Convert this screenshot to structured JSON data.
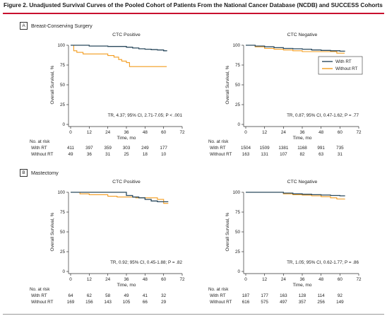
{
  "figure_title": "Figure 2. Unadjusted Survival Curves of the Pooled Cohort of Patients From the National Cancer Database (NCDB) and SUCCESS Cohorts",
  "panels": [
    {
      "letter": "A",
      "title": "Breast-Conserving Surgery"
    },
    {
      "letter": "B",
      "title": "Mastectomy"
    }
  ],
  "colors": {
    "with_rt": "#2b4a5e",
    "without_rt": "#f39c1f",
    "accent_rule": "#c8102e"
  },
  "legend": {
    "with_rt": "With RT",
    "without_rt": "Without RT"
  },
  "risk_labels": {
    "header": "No. at risk",
    "with_rt": "With RT",
    "without_rt": "Without RT"
  },
  "chart_data": [
    {
      "type": "line",
      "panel": "A",
      "title": "CTC Positive",
      "xlabel": "Time, mo",
      "ylabel": "Overall Survival, %",
      "xlim": [
        0,
        72
      ],
      "ylim": [
        0,
        100
      ],
      "xticks": [
        0,
        12,
        24,
        36,
        48,
        60,
        72
      ],
      "yticks": [
        0,
        25,
        50,
        75,
        100
      ],
      "annotation": "TR, 4.37; 95% CI, 2.71-7.05; P < .001",
      "legend": false,
      "series": [
        {
          "name": "With RT",
          "color": "#2b4a5e",
          "x": [
            0,
            12,
            24,
            36,
            40,
            44,
            48,
            52,
            56,
            60,
            62
          ],
          "y": [
            100,
            99,
            98.5,
            97.5,
            96.5,
            95.5,
            95,
            94.5,
            94,
            93,
            92.5
          ]
        },
        {
          "name": "Without RT",
          "color": "#f39c1f",
          "x": [
            0,
            2,
            4,
            8,
            18,
            24,
            28,
            31,
            33,
            36,
            38,
            50,
            62
          ],
          "y": [
            100,
            93,
            91,
            89,
            89,
            87,
            85,
            82,
            80,
            78,
            73,
            73,
            73
          ]
        }
      ],
      "risk_times": [
        0,
        12,
        24,
        36,
        48,
        60
      ],
      "risk": {
        "with_rt": [
          411,
          397,
          359,
          303,
          249,
          177
        ],
        "without_rt": [
          49,
          36,
          31,
          25,
          18,
          10
        ]
      }
    },
    {
      "type": "line",
      "panel": "A",
      "title": "CTC Negative",
      "xlabel": "Time, mo",
      "ylabel": "Overall Survival, %",
      "xlim": [
        0,
        72
      ],
      "ylim": [
        0,
        100
      ],
      "xticks": [
        0,
        12,
        24,
        36,
        48,
        60,
        72
      ],
      "yticks": [
        0,
        25,
        50,
        75,
        100
      ],
      "annotation": "TR, 0.87; 95% CI, 0.47-1.62; P = .77",
      "legend": true,
      "legend_position": "right",
      "series": [
        {
          "name": "With RT",
          "color": "#2b4a5e",
          "x": [
            0,
            6,
            12,
            18,
            24,
            30,
            36,
            42,
            48,
            54,
            60,
            63
          ],
          "y": [
            100,
            99,
            98,
            97,
            96,
            95.5,
            95,
            94,
            93.5,
            93,
            92.5,
            92
          ]
        },
        {
          "name": "Without RT",
          "color": "#f39c1f",
          "x": [
            0,
            6,
            12,
            18,
            24,
            30,
            36,
            42,
            48,
            54,
            58,
            63
          ],
          "y": [
            100,
            98,
            96,
            95,
            94,
            93,
            92,
            92,
            92,
            92,
            90,
            90
          ]
        }
      ],
      "risk_times": [
        0,
        12,
        24,
        36,
        48,
        60
      ],
      "risk": {
        "with_rt": [
          1504,
          1509,
          1381,
          1168,
          991,
          735
        ],
        "without_rt": [
          163,
          131,
          107,
          82,
          63,
          31
        ]
      }
    },
    {
      "type": "line",
      "panel": "B",
      "title": "CTC Positive",
      "xlabel": "Time, mo",
      "ylabel": "Overall Survival, %",
      "xlim": [
        0,
        72
      ],
      "ylim": [
        0,
        100
      ],
      "xticks": [
        0,
        12,
        24,
        36,
        48,
        60,
        72
      ],
      "yticks": [
        0,
        25,
        50,
        75,
        100
      ],
      "annotation": "TR, 0.92; 95% CI, 0.45-1.88; P = .82",
      "legend": false,
      "series": [
        {
          "name": "With RT",
          "color": "#2b4a5e",
          "x": [
            0,
            6,
            12,
            24,
            36,
            40,
            44,
            48,
            52,
            56,
            63
          ],
          "y": [
            100,
            100,
            100,
            100,
            96,
            94,
            93,
            91,
            89,
            88,
            88
          ]
        },
        {
          "name": "Without RT",
          "color": "#f39c1f",
          "x": [
            0,
            6,
            12,
            20,
            24,
            30,
            36,
            42,
            48,
            56,
            60,
            63
          ],
          "y": [
            100,
            98,
            97,
            97,
            95,
            94,
            94,
            93,
            93,
            91,
            86,
            86
          ]
        }
      ],
      "risk_times": [
        0,
        12,
        24,
        36,
        48,
        60
      ],
      "risk": {
        "with_rt": [
          64,
          62,
          58,
          49,
          41,
          32
        ],
        "without_rt": [
          169,
          156,
          143,
          105,
          66,
          29
        ]
      }
    },
    {
      "type": "line",
      "panel": "B",
      "title": "CTC Negative",
      "xlabel": "Time, mo",
      "ylabel": "Overall Survival, %",
      "xlim": [
        0,
        72
      ],
      "ylim": [
        0,
        100
      ],
      "xticks": [
        0,
        12,
        24,
        36,
        48,
        60,
        72
      ],
      "yticks": [
        0,
        25,
        50,
        75,
        100
      ],
      "annotation": "TR, 1.05; 95% CI, 0.62-1.77; P = .86",
      "legend": false,
      "series": [
        {
          "name": "With RT",
          "color": "#2b4a5e",
          "x": [
            0,
            12,
            24,
            30,
            36,
            42,
            48,
            54,
            60,
            63
          ],
          "y": [
            100,
            100,
            99,
            98,
            97.5,
            97,
            96.5,
            96,
            95.5,
            95
          ]
        },
        {
          "name": "Without RT",
          "color": "#f39c1f",
          "x": [
            0,
            12,
            24,
            30,
            36,
            42,
            48,
            54,
            58,
            63
          ],
          "y": [
            100,
            100,
            98,
            97,
            96.5,
            95.5,
            94.5,
            93,
            91.5,
            91
          ]
        }
      ],
      "risk_times": [
        0,
        12,
        24,
        36,
        48,
        60
      ],
      "risk": {
        "with_rt": [
          187,
          177,
          163,
          128,
          114,
          92
        ],
        "without_rt": [
          616,
          575,
          497,
          357,
          256,
          149
        ]
      }
    }
  ]
}
